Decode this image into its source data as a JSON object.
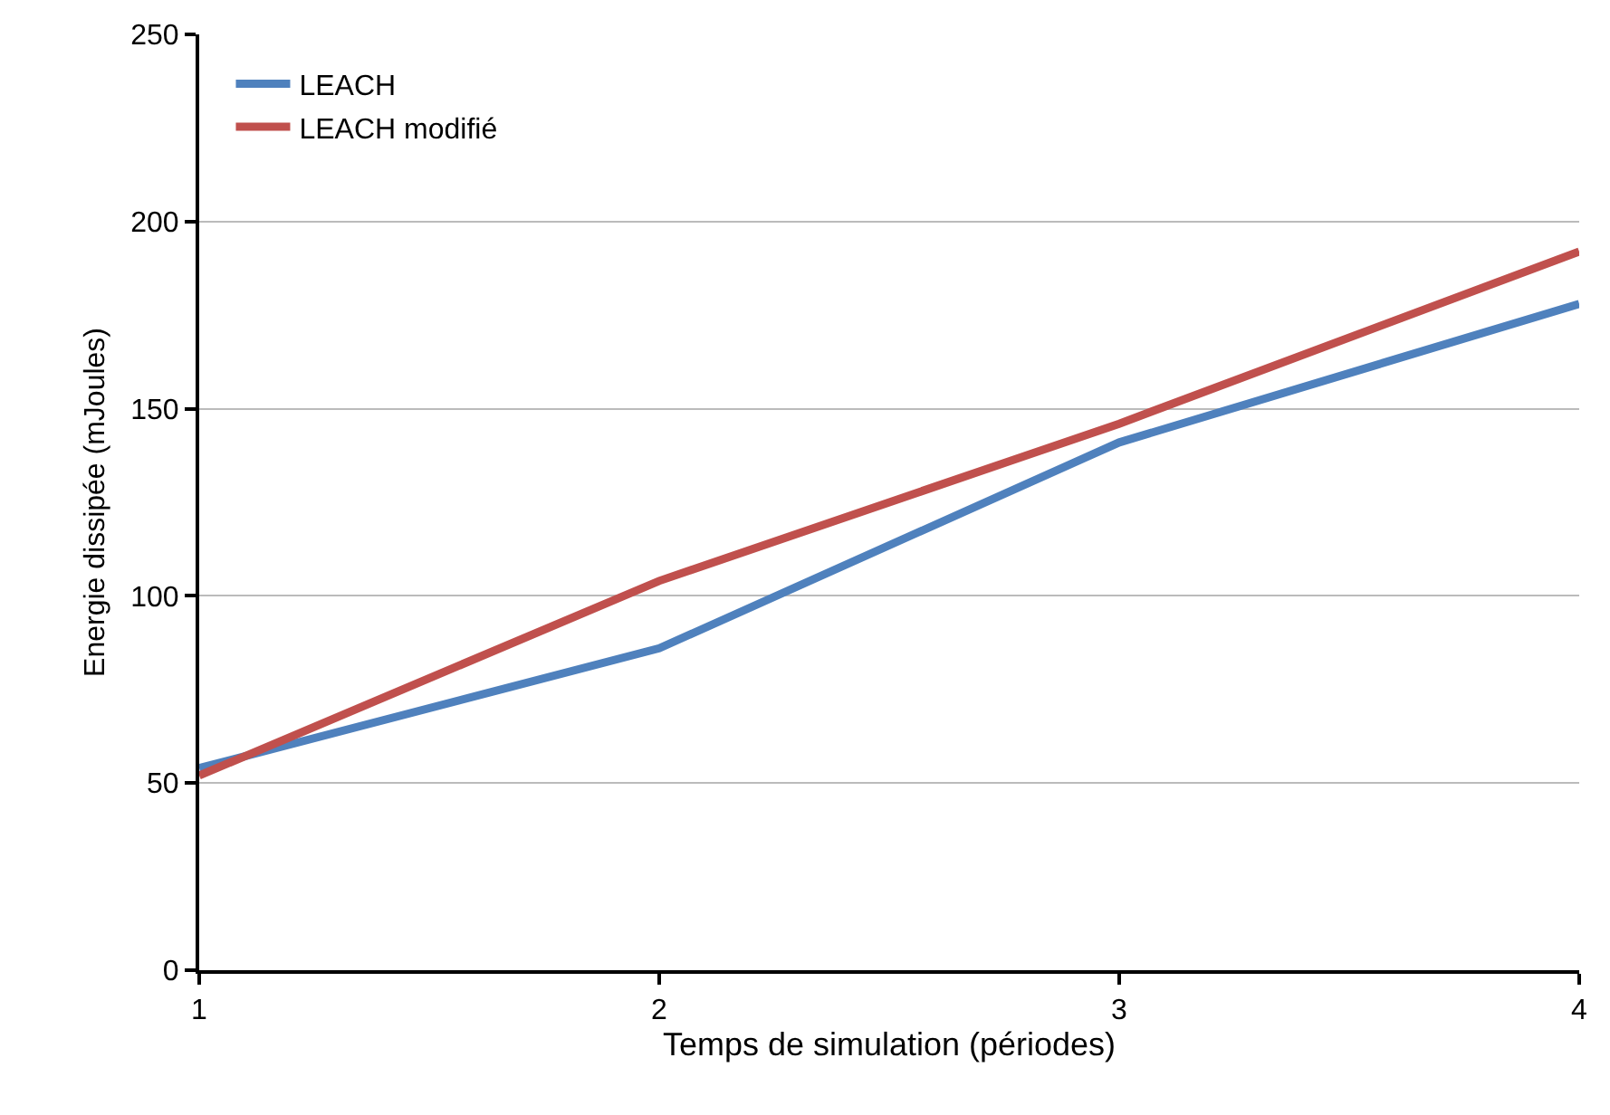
{
  "chart_data": {
    "type": "line",
    "xlabel": "Temps de simulation (périodes)",
    "ylabel": "Energie dissipée (mJoules)",
    "x": [
      1,
      2,
      3,
      4
    ],
    "series": [
      {
        "name": "LEACH",
        "color": "#4f81bd",
        "values": [
          54,
          86,
          141,
          178
        ]
      },
      {
        "name": "LEACH modifié",
        "color": "#c0504d",
        "values": [
          52,
          104,
          146,
          192
        ]
      }
    ],
    "xlim": [
      1,
      4
    ],
    "xticks": [
      1,
      2,
      3,
      4
    ],
    "ylim": [
      0,
      250
    ],
    "yticks": [
      0,
      50,
      100,
      150,
      200,
      250
    ],
    "grid": "y",
    "legend": "top left",
    "marker": "none",
    "line_style": "solid"
  }
}
